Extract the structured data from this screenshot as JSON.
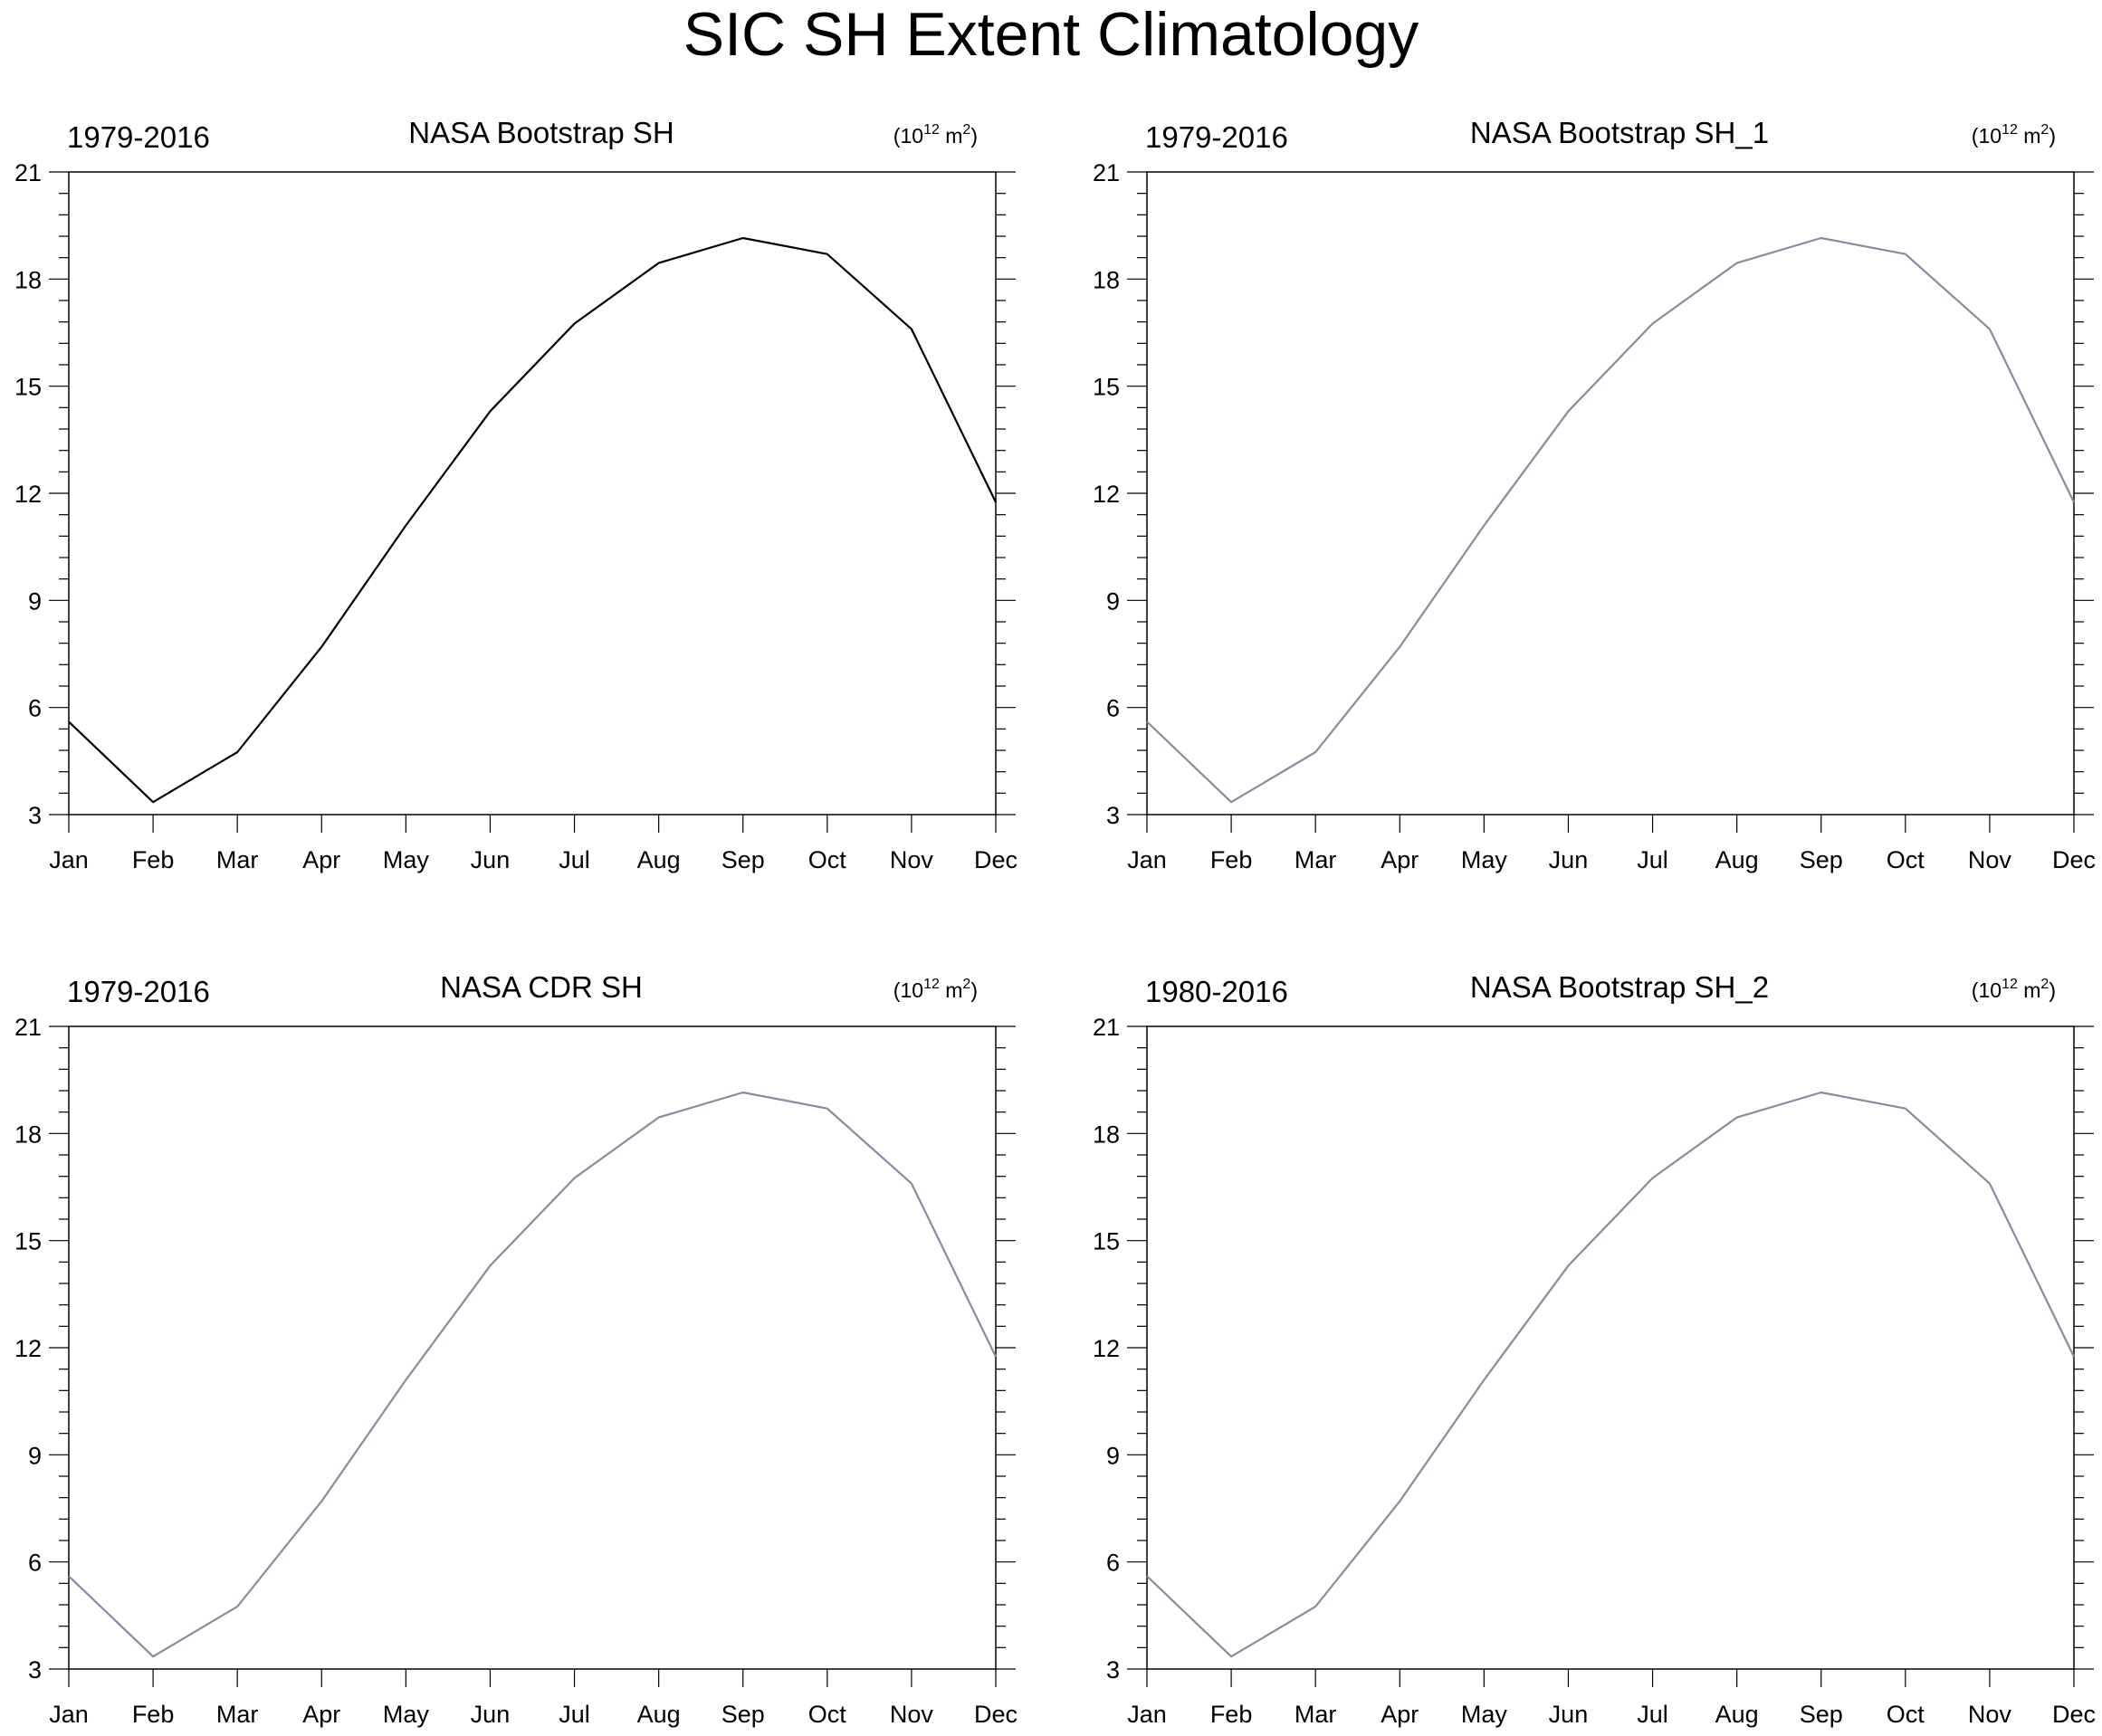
{
  "title": "SIC SH Extent Climatology",
  "colors": {
    "black_line": "#000000",
    "grey_line": "#8a8aa0",
    "axis": "#000000"
  },
  "chart_data": [
    {
      "type": "line",
      "title": "NASA Bootstrap SH",
      "left_label": "1979-2016",
      "units_base": "10",
      "units_exp1": "12",
      "units_mid": " m",
      "units_exp2": "2",
      "units_open": "(",
      "units_close": ")",
      "line_color": "#000000",
      "categories": [
        "Jan",
        "Feb",
        "Mar",
        "Apr",
        "May",
        "Jun",
        "Jul",
        "Aug",
        "Sep",
        "Oct",
        "Nov",
        "Dec"
      ],
      "values": [
        5.6,
        3.35,
        4.75,
        7.7,
        11.1,
        14.3,
        16.75,
        18.45,
        19.15,
        18.7,
        16.6,
        11.75
      ],
      "ylim": [
        3,
        21
      ],
      "yticks": [
        3,
        6,
        9,
        12,
        15,
        18,
        21
      ]
    },
    {
      "type": "line",
      "title": "NASA Bootstrap SH_1",
      "left_label": "1979-2016",
      "units_base": "10",
      "units_exp1": "12",
      "units_mid": " m",
      "units_exp2": "2",
      "units_open": "(",
      "units_close": ")",
      "line_color": "#8a8aa0",
      "categories": [
        "Jan",
        "Feb",
        "Mar",
        "Apr",
        "May",
        "Jun",
        "Jul",
        "Aug",
        "Sep",
        "Oct",
        "Nov",
        "Dec"
      ],
      "values": [
        5.6,
        3.35,
        4.75,
        7.7,
        11.1,
        14.3,
        16.75,
        18.45,
        19.15,
        18.7,
        16.6,
        11.75
      ],
      "ylim": [
        3,
        21
      ],
      "yticks": [
        3,
        6,
        9,
        12,
        15,
        18,
        21
      ]
    },
    {
      "type": "line",
      "title": "NASA CDR SH",
      "left_label": "1979-2016",
      "units_base": "10",
      "units_exp1": "12",
      "units_mid": " m",
      "units_exp2": "2",
      "units_open": "(",
      "units_close": ")",
      "line_color": "#8a8aa0",
      "categories": [
        "Jan",
        "Feb",
        "Mar",
        "Apr",
        "May",
        "Jun",
        "Jul",
        "Aug",
        "Sep",
        "Oct",
        "Nov",
        "Dec"
      ],
      "values": [
        5.6,
        3.35,
        4.75,
        7.7,
        11.1,
        14.3,
        16.75,
        18.45,
        19.15,
        18.7,
        16.6,
        11.75
      ],
      "ylim": [
        3,
        21
      ],
      "yticks": [
        3,
        6,
        9,
        12,
        15,
        18,
        21
      ]
    },
    {
      "type": "line",
      "title": "NASA Bootstrap SH_2",
      "left_label": "1980-2016",
      "units_base": "10",
      "units_exp1": "12",
      "units_mid": " m",
      "units_exp2": "2",
      "units_open": "(",
      "units_close": ")",
      "line_color": "#8a8aa0",
      "categories": [
        "Jan",
        "Feb",
        "Mar",
        "Apr",
        "May",
        "Jun",
        "Jul",
        "Aug",
        "Sep",
        "Oct",
        "Nov",
        "Dec"
      ],
      "values": [
        5.6,
        3.35,
        4.75,
        7.7,
        11.1,
        14.3,
        16.75,
        18.45,
        19.15,
        18.7,
        16.6,
        11.75
      ],
      "ylim": [
        3,
        21
      ],
      "yticks": [
        3,
        6,
        9,
        12,
        15,
        18,
        21
      ]
    }
  ]
}
